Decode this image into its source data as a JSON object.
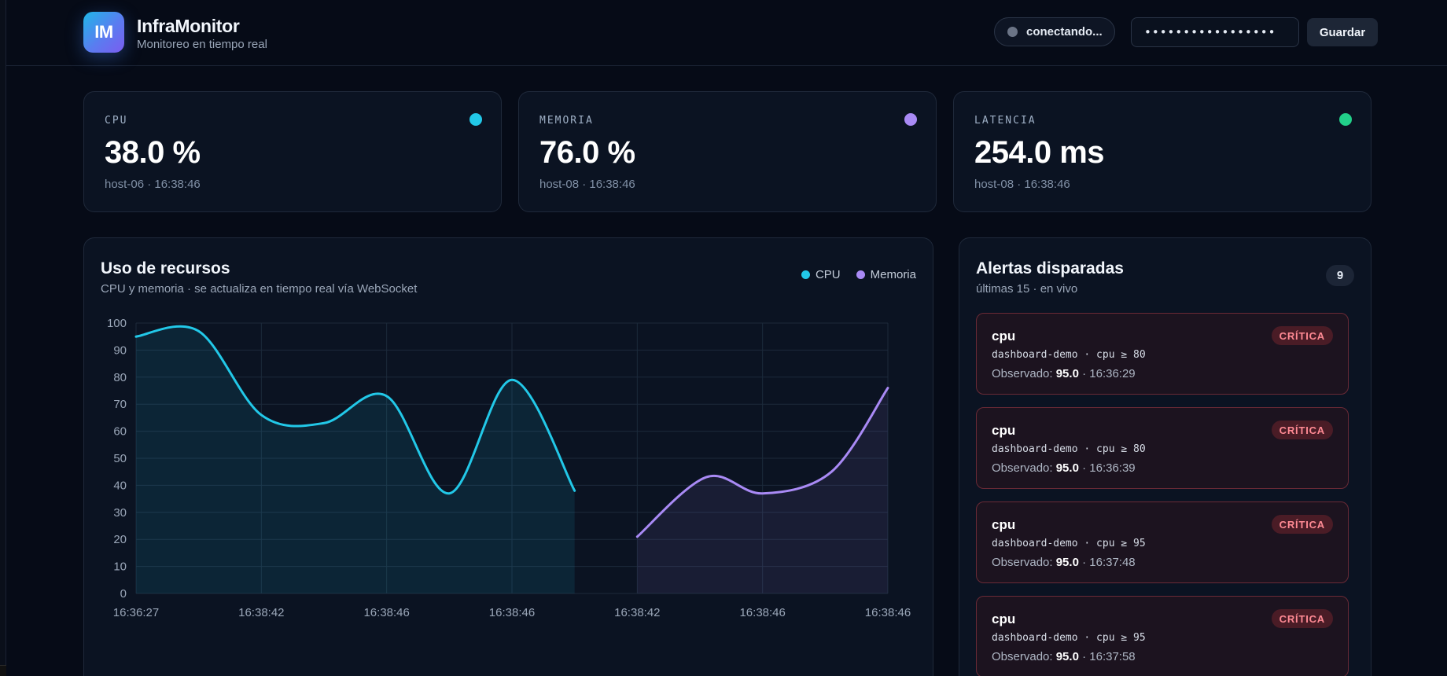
{
  "header": {
    "logo_text": "IM",
    "title": "InfraMonitor",
    "subtitle": "Monitoreo en tiempo real",
    "connection_status": "conectando...",
    "token_value": "•••••••••••••••••",
    "save_label": "Guardar"
  },
  "metrics": [
    {
      "label": "CPU",
      "value": "38.0 %",
      "meta": "host-06 · 16:38:46",
      "color": "#22c8e8"
    },
    {
      "label": "MEMORIA",
      "value": "76.0 %",
      "meta": "host-08 · 16:38:46",
      "color": "#a98af5"
    },
    {
      "label": "LATENCIA",
      "value": "254.0 ms",
      "meta": "host-08 · 16:38:46",
      "color": "#22d08a"
    }
  ],
  "chart_panel": {
    "title": "Uso de recursos",
    "subtitle": "CPU y memoria · se actualiza en tiempo real vía WebSocket"
  },
  "chart_data": {
    "type": "area",
    "x": [
      "16:36:27",
      "16:38:42",
      "16:38:46",
      "16:38:46",
      "16:38:42",
      "16:38:46",
      "16:38:46"
    ],
    "ylim": [
      0,
      100
    ],
    "yticks": [
      0,
      10,
      20,
      30,
      40,
      50,
      60,
      70,
      80,
      90,
      100
    ],
    "grid": true,
    "legend": "top-right",
    "series": [
      {
        "name": "CPU",
        "color": "#22c8e8",
        "points": [
          [
            0,
            95
          ],
          [
            0.5,
            97
          ],
          [
            1,
            66
          ],
          [
            1.5,
            63
          ],
          [
            2,
            73
          ],
          [
            2.5,
            37
          ],
          [
            3,
            79
          ],
          [
            3.5,
            38
          ]
        ]
      },
      {
        "name": "Memoria",
        "color": "#a98af5",
        "points": [
          [
            4,
            21
          ],
          [
            4.55,
            43
          ],
          [
            5,
            37
          ],
          [
            5.55,
            45
          ],
          [
            6,
            76
          ]
        ]
      }
    ]
  },
  "alerts_panel": {
    "title": "Alertas disparadas",
    "subtitle": "últimas 15 · en vivo",
    "count": "9"
  },
  "alerts": [
    {
      "title": "cpu",
      "rule": "dashboard-demo · cpu ≥ 80",
      "observed_label": "Observado:",
      "observed_value": "95.0",
      "time": "· 16:36:29",
      "severity": "CRÍTICA"
    },
    {
      "title": "cpu",
      "rule": "dashboard-demo · cpu ≥ 80",
      "observed_label": "Observado:",
      "observed_value": "95.0",
      "time": "· 16:36:39",
      "severity": "CRÍTICA"
    },
    {
      "title": "cpu",
      "rule": "dashboard-demo · cpu ≥ 95",
      "observed_label": "Observado:",
      "observed_value": "95.0",
      "time": "· 16:37:48",
      "severity": "CRÍTICA"
    },
    {
      "title": "cpu",
      "rule": "dashboard-demo · cpu ≥ 95",
      "observed_label": "Observado:",
      "observed_value": "95.0",
      "time": "· 16:37:58",
      "severity": "CRÍTICA"
    }
  ]
}
